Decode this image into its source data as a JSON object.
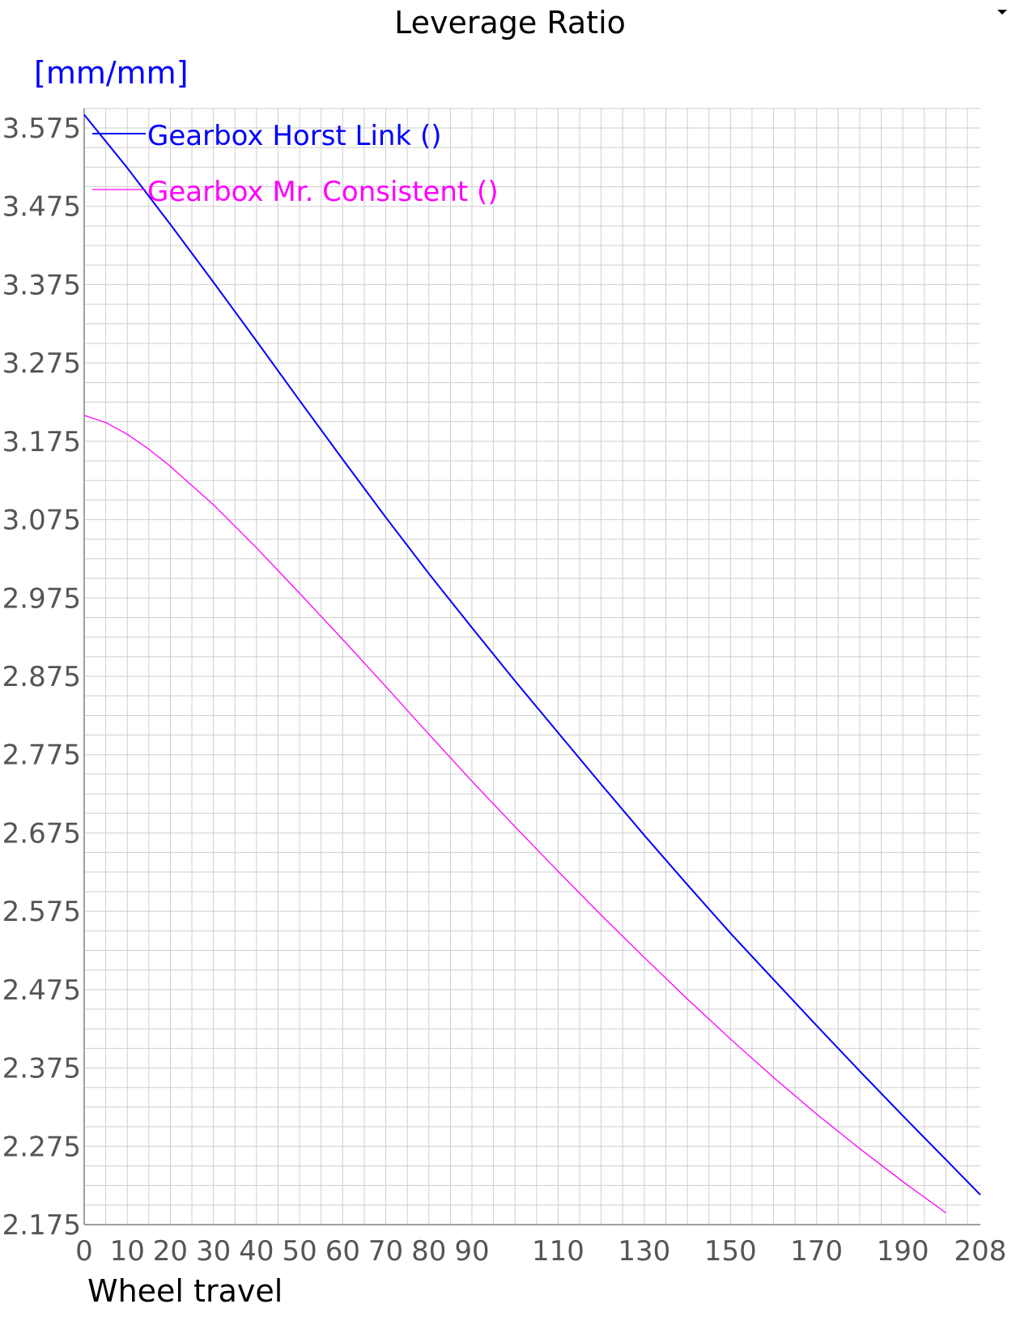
{
  "chart_data": {
    "type": "line",
    "title": "Leverage Ratio",
    "ylabel": "[mm/mm]",
    "xlabel": "Wheel travel",
    "xlim": [
      0,
      208
    ],
    "ylim": [
      2.175,
      3.6
    ],
    "x_ticks": [
      0,
      10,
      20,
      30,
      40,
      50,
      60,
      70,
      80,
      90,
      110,
      130,
      150,
      170,
      190,
      208
    ],
    "y_ticks": [
      2.175,
      2.275,
      2.375,
      2.475,
      2.575,
      2.675,
      2.775,
      2.875,
      2.975,
      3.075,
      3.175,
      3.275,
      3.375,
      3.475,
      3.575
    ],
    "y_tick_labels": [
      "2.175",
      "2.275",
      "2.375",
      "2.475",
      "2.575",
      "2.675",
      "2.775",
      "2.875",
      "2.975",
      "3.075",
      "3.175",
      "3.275",
      "3.375",
      "3.475",
      "3.575"
    ],
    "grid": true,
    "legend_position": "top-left",
    "series": [
      {
        "name": "Gearbox Horst Link ()",
        "color": "#0000ff",
        "x": [
          0,
          10,
          20,
          30,
          40,
          50,
          60,
          70,
          80,
          90,
          100,
          110,
          120,
          130,
          140,
          150,
          160,
          170,
          180,
          190,
          200,
          208
        ],
        "y": [
          3.592,
          3.524,
          3.452,
          3.378,
          3.303,
          3.227,
          3.152,
          3.078,
          3.006,
          2.937,
          2.869,
          2.803,
          2.737,
          2.672,
          2.609,
          2.547,
          2.488,
          2.429,
          2.371,
          2.314,
          2.258,
          2.213
        ]
      },
      {
        "name": "Gearbox Mr. Consistent ()",
        "color": "#ff00ff",
        "x": [
          0,
          5,
          10,
          15,
          20,
          30,
          40,
          50,
          60,
          70,
          80,
          90,
          100,
          110,
          120,
          130,
          140,
          150,
          160,
          170,
          180,
          190,
          200
        ],
        "y": [
          3.208,
          3.199,
          3.184,
          3.165,
          3.143,
          3.094,
          3.039,
          2.981,
          2.922,
          2.862,
          2.801,
          2.741,
          2.683,
          2.626,
          2.57,
          2.516,
          2.463,
          2.412,
          2.363,
          2.316,
          2.272,
          2.23,
          2.19
        ]
      }
    ]
  }
}
